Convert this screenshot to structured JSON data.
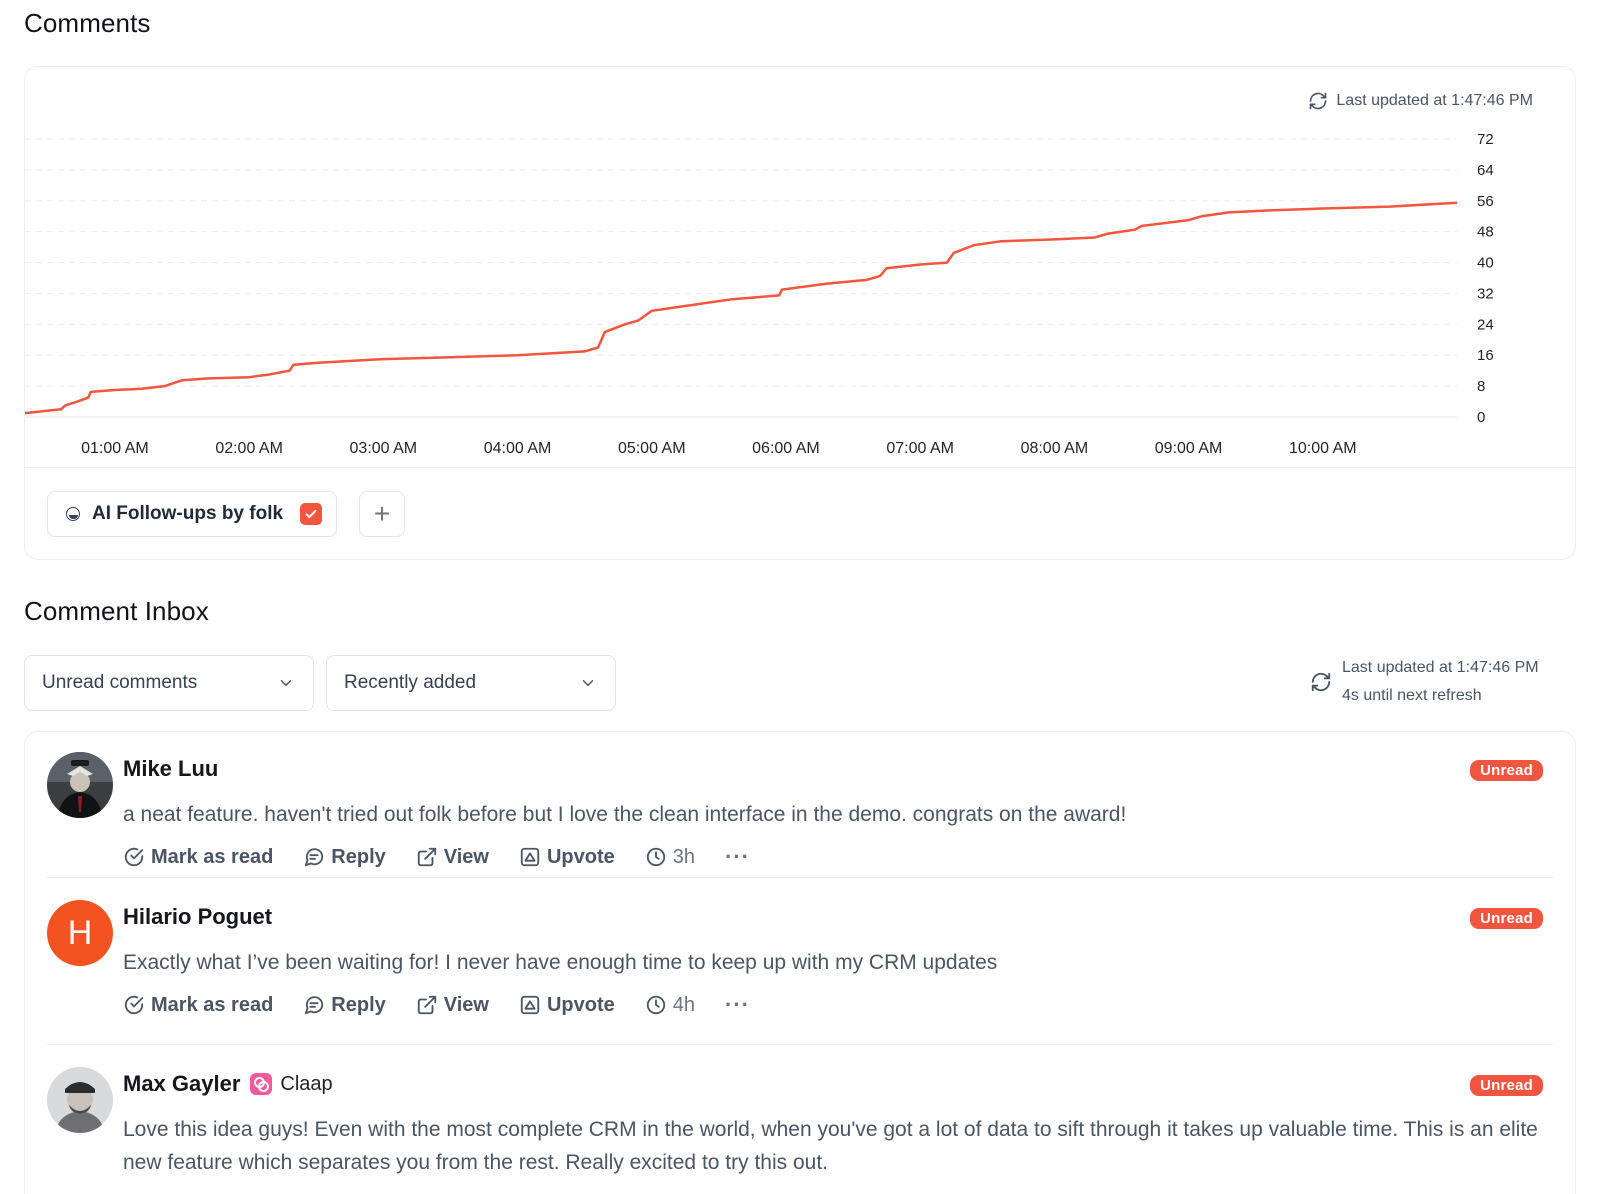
{
  "comments_section": {
    "title": "Comments",
    "last_updated": "Last updated at 1:47:46 PM",
    "filter_chip_label": "AI Follow-ups by folk",
    "add_label": "+"
  },
  "chart_data": {
    "type": "line",
    "x_tick_labels": [
      "01:00 AM",
      "02:00 AM",
      "03:00 AM",
      "04:00 AM",
      "05:00 AM",
      "06:00 AM",
      "07:00 AM",
      "08:00 AM",
      "09:00 AM",
      "10:00 AM"
    ],
    "y_ticks": [
      0,
      8,
      16,
      24,
      32,
      40,
      48,
      56,
      64,
      72
    ],
    "ylim": [
      0,
      72
    ],
    "xlim_hours": [
      0.33,
      11.0
    ],
    "grid": true,
    "y_axis_side": "right",
    "series": [
      {
        "color": "#f3553d",
        "points": [
          [
            0.33,
            1
          ],
          [
            0.6,
            2
          ],
          [
            0.63,
            3
          ],
          [
            0.72,
            4
          ],
          [
            0.8,
            5
          ],
          [
            0.82,
            6.5
          ],
          [
            1.0,
            7
          ],
          [
            1.2,
            7.3
          ],
          [
            1.37,
            8
          ],
          [
            1.5,
            9.5
          ],
          [
            1.7,
            10
          ],
          [
            2.0,
            10.3
          ],
          [
            2.15,
            11
          ],
          [
            2.3,
            12
          ],
          [
            2.33,
            13.5
          ],
          [
            2.5,
            14
          ],
          [
            3.0,
            15
          ],
          [
            3.5,
            15.5
          ],
          [
            4.0,
            16
          ],
          [
            4.5,
            17
          ],
          [
            4.6,
            18
          ],
          [
            4.65,
            22
          ],
          [
            4.8,
            24
          ],
          [
            4.9,
            25
          ],
          [
            5.0,
            27.5
          ],
          [
            5.3,
            29
          ],
          [
            5.6,
            30.5
          ],
          [
            5.95,
            31.5
          ],
          [
            5.97,
            33
          ],
          [
            6.3,
            34.5
          ],
          [
            6.6,
            35.5
          ],
          [
            6.7,
            36.5
          ],
          [
            6.75,
            38.5
          ],
          [
            7.0,
            39.5
          ],
          [
            7.2,
            40
          ],
          [
            7.25,
            42.5
          ],
          [
            7.4,
            44.5
          ],
          [
            7.6,
            45.5
          ],
          [
            8.0,
            46
          ],
          [
            8.3,
            46.5
          ],
          [
            8.4,
            47.5
          ],
          [
            8.6,
            48.5
          ],
          [
            8.65,
            49.5
          ],
          [
            9.0,
            51
          ],
          [
            9.1,
            52
          ],
          [
            9.3,
            53
          ],
          [
            9.6,
            53.5
          ],
          [
            10.0,
            54
          ],
          [
            10.5,
            54.5
          ],
          [
            11.0,
            55.5
          ]
        ]
      }
    ]
  },
  "inbox_section": {
    "title": "Comment Inbox",
    "filter_select": "Unread comments",
    "sort_select": "Recently added",
    "last_updated": "Last updated at 1:47:46 PM",
    "next_refresh": "4s until next refresh"
  },
  "comments": [
    {
      "author": "Mike Luu",
      "company": "",
      "avatar": "photo",
      "badge": "Unread",
      "text": "a neat feature. haven't tried out folk before but I love the clean interface in the demo. congrats on the award!",
      "actions": [
        "Mark as read",
        "Reply",
        "View",
        "Upvote"
      ],
      "time": "3h",
      "more": "···"
    },
    {
      "author": "Hilario Poguet",
      "company": "",
      "avatar": "H",
      "badge": "Unread",
      "text": "Exactly what I’ve been waiting for! I never have enough time to keep up with my CRM updates",
      "actions": [
        "Mark as read",
        "Reply",
        "View",
        "Upvote"
      ],
      "time": "4h",
      "more": "···"
    },
    {
      "author": "Max Gayler",
      "company": "Claap",
      "avatar": "photo",
      "badge": "Unread",
      "text": "Love this idea guys! Even with the most complete CRM in the world, when you've got a lot of data to sift through it takes up valuable time. This is an elite new feature which separates you from the rest. Really excited to try this out."
    }
  ],
  "colors": {
    "accent": "#f3553d",
    "badge": "#f0553f",
    "avatar_letter_bg": "#f35320"
  }
}
